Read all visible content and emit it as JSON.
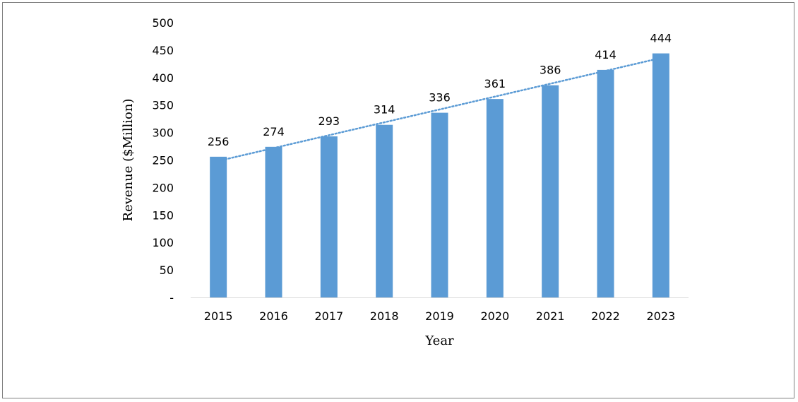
{
  "chart_data": {
    "type": "bar",
    "title": "",
    "xlabel": "Year",
    "ylabel": "Revenue ($Million)",
    "categories": [
      "2015",
      "2016",
      "2017",
      "2018",
      "2019",
      "2020",
      "2021",
      "2022",
      "2023"
    ],
    "values": [
      256,
      274,
      293,
      314,
      336,
      361,
      386,
      414,
      444
    ],
    "ylim": [
      0,
      500
    ],
    "yticks": [
      "-",
      "50",
      "100",
      "150",
      "200",
      "250",
      "300",
      "350",
      "400",
      "450",
      "500"
    ],
    "trendline": {
      "type": "linear",
      "style": "dotted"
    },
    "grid": false,
    "legend": "none",
    "colors": {
      "bar": "#5b9bd5",
      "trendline": "#5b9bd5",
      "axis": "#d9d9d9",
      "frame": "#7f7f7f"
    }
  }
}
